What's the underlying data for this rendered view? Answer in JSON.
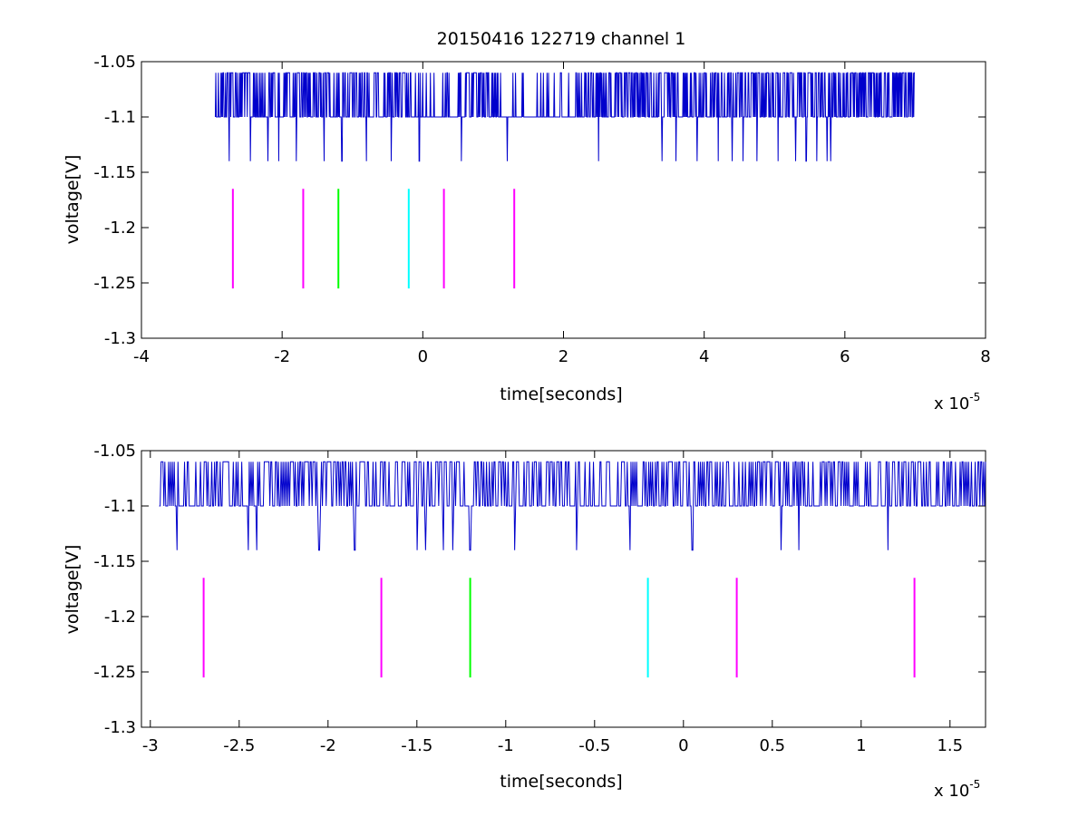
{
  "chart_data": [
    {
      "type": "line",
      "title": "20150416 122719 channel 1",
      "xlabel": "time[seconds]",
      "ylabel": "voltage[V]",
      "x_multiplier_label": "x 10",
      "x_multiplier_exponent": "-5",
      "xlim": [
        -4,
        8
      ],
      "ylim": [
        -1.3,
        -1.05
      ],
      "xticks": [
        -4,
        -2,
        0,
        2,
        4,
        6,
        8
      ],
      "xtick_labels": [
        "-4",
        "-2",
        "0",
        "2",
        "4",
        "6",
        "8"
      ],
      "yticks": [
        -1.3,
        -1.25,
        -1.2,
        -1.15,
        -1.1,
        -1.05
      ],
      "ytick_labels": [
        "-1.3",
        "-1.25",
        "-1.2",
        "-1.15",
        "-1.1",
        "-1.05"
      ],
      "grid": false,
      "series": [
        {
          "color": "#0000cc",
          "x_range": [
            -2.95,
            7.0
          ],
          "levels": [
            -1.06,
            -1.1,
            -1.14
          ],
          "dips_to_-1.14_at": [
            -2.75,
            -2.45,
            -2.2,
            -2.05,
            -1.8,
            -1.4,
            -1.15,
            -0.8,
            -0.45,
            -0.05,
            0.55,
            1.2,
            2.5,
            3.4,
            3.6,
            3.9,
            4.2,
            4.4,
            4.55,
            4.75,
            5.05,
            5.3,
            5.45,
            5.6,
            5.75,
            5.8
          ]
        }
      ],
      "vlines": [
        {
          "x": -2.7,
          "y_range": [
            -1.255,
            -1.165
          ],
          "color": "#ff00ff"
        },
        {
          "x": -1.7,
          "y_range": [
            -1.255,
            -1.165
          ],
          "color": "#ff00ff"
        },
        {
          "x": -1.2,
          "y_range": [
            -1.255,
            -1.165
          ],
          "color": "#00ff00"
        },
        {
          "x": -0.2,
          "y_range": [
            -1.255,
            -1.165
          ],
          "color": "#00ffff"
        },
        {
          "x": 0.3,
          "y_range": [
            -1.255,
            -1.165
          ],
          "color": "#ff00ff"
        },
        {
          "x": 1.3,
          "y_range": [
            -1.255,
            -1.165
          ],
          "color": "#ff00ff"
        }
      ]
    },
    {
      "type": "line",
      "xlabel": "time[seconds]",
      "ylabel": "voltage[V]",
      "x_multiplier_label": "x 10",
      "x_multiplier_exponent": "-5",
      "xlim": [
        -3.05,
        1.7
      ],
      "ylim": [
        -1.3,
        -1.05
      ],
      "xticks": [
        -3,
        -2.5,
        -2,
        -1.5,
        -1,
        -0.5,
        0,
        0.5,
        1,
        1.5
      ],
      "xtick_labels": [
        "-3",
        "-2.5",
        "-2",
        "-1.5",
        "-1",
        "-0.5",
        "0",
        "0.5",
        "1",
        "1.5"
      ],
      "yticks": [
        -1.3,
        -1.25,
        -1.2,
        -1.15,
        -1.1,
        -1.05
      ],
      "ytick_labels": [
        "-1.3",
        "-1.25",
        "-1.2",
        "-1.15",
        "-1.1",
        "-1.05"
      ],
      "grid": false,
      "series": [
        {
          "color": "#0000cc",
          "x_range": [
            -2.95,
            1.7
          ],
          "levels": [
            -1.06,
            -1.1,
            -1.14
          ],
          "dips_to_-1.14_at": [
            -2.85,
            -2.45,
            -2.4,
            -2.05,
            -1.85,
            -1.5,
            -1.45,
            -1.35,
            -1.3,
            -1.2,
            -0.95,
            -0.6,
            -0.3,
            0.05,
            0.55,
            0.65,
            1.15
          ]
        }
      ],
      "vlines": [
        {
          "x": -2.7,
          "y_range": [
            -1.255,
            -1.165
          ],
          "color": "#ff00ff"
        },
        {
          "x": -1.7,
          "y_range": [
            -1.255,
            -1.165
          ],
          "color": "#ff00ff"
        },
        {
          "x": -1.2,
          "y_range": [
            -1.255,
            -1.165
          ],
          "color": "#00ff00"
        },
        {
          "x": -0.2,
          "y_range": [
            -1.255,
            -1.165
          ],
          "color": "#00ffff"
        },
        {
          "x": 0.3,
          "y_range": [
            -1.255,
            -1.165
          ],
          "color": "#ff00ff"
        },
        {
          "x": 1.3,
          "y_range": [
            -1.255,
            -1.165
          ],
          "color": "#ff00ff"
        }
      ]
    }
  ]
}
